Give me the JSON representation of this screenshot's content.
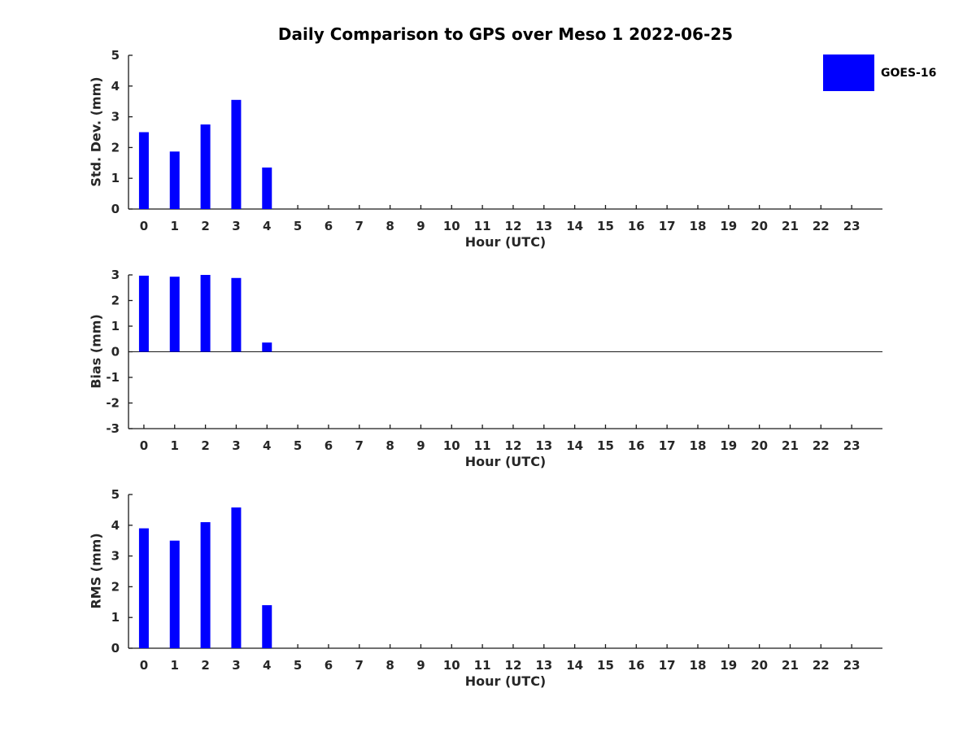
{
  "title": "Daily Comparison to GPS over Meso 1 2022-06-25",
  "legend": {
    "label": "GOES-16",
    "color": "#0000ff"
  },
  "chart_data": [
    {
      "type": "bar",
      "title": "Daily Comparison to GPS over Meso 1 2022-06-25",
      "ylabel": "Std. Dev. (mm)",
      "xlabel": "Hour (UTC)",
      "categories": [
        "0",
        "1",
        "2",
        "3",
        "4",
        "5",
        "6",
        "7",
        "8",
        "9",
        "10",
        "11",
        "12",
        "13",
        "14",
        "15",
        "16",
        "17",
        "18",
        "19",
        "20",
        "21",
        "22",
        "23"
      ],
      "series": [
        {
          "name": "GOES-16",
          "values": [
            2.5,
            1.87,
            2.75,
            3.55,
            1.35,
            null,
            null,
            null,
            null,
            null,
            null,
            null,
            null,
            null,
            null,
            null,
            null,
            null,
            null,
            null,
            null,
            null,
            null,
            null
          ]
        }
      ],
      "ylim": [
        0,
        5
      ],
      "ytick_step": 1,
      "zero_line": false,
      "bar_color": "#0000ff",
      "legend_position": "outside-top-right",
      "grid": false
    },
    {
      "type": "bar",
      "ylabel": "Bias (mm)",
      "xlabel": "Hour (UTC)",
      "categories": [
        "0",
        "1",
        "2",
        "3",
        "4",
        "5",
        "6",
        "7",
        "8",
        "9",
        "10",
        "11",
        "12",
        "13",
        "14",
        "15",
        "16",
        "17",
        "18",
        "19",
        "20",
        "21",
        "22",
        "23"
      ],
      "series": [
        {
          "name": "GOES-16",
          "values": [
            2.97,
            2.93,
            3.02,
            2.88,
            0.36,
            null,
            null,
            null,
            null,
            null,
            null,
            null,
            null,
            null,
            null,
            null,
            null,
            null,
            null,
            null,
            null,
            null,
            null,
            null
          ]
        }
      ],
      "ylim": [
        -3,
        3
      ],
      "ytick_step": 1,
      "zero_line": true,
      "bar_color": "#0000ff",
      "grid": false
    },
    {
      "type": "bar",
      "ylabel": "RMS (mm)",
      "xlabel": "Hour (UTC)",
      "categories": [
        "0",
        "1",
        "2",
        "3",
        "4",
        "5",
        "6",
        "7",
        "8",
        "9",
        "10",
        "11",
        "12",
        "13",
        "14",
        "15",
        "16",
        "17",
        "18",
        "19",
        "20",
        "21",
        "22",
        "23"
      ],
      "series": [
        {
          "name": "GOES-16",
          "values": [
            3.9,
            3.5,
            4.1,
            4.58,
            1.4,
            null,
            null,
            null,
            null,
            null,
            null,
            null,
            null,
            null,
            null,
            null,
            null,
            null,
            null,
            null,
            null,
            null,
            null,
            null
          ]
        }
      ],
      "ylim": [
        0,
        5
      ],
      "ytick_step": 1,
      "zero_line": false,
      "bar_color": "#0000ff",
      "grid": false
    }
  ]
}
